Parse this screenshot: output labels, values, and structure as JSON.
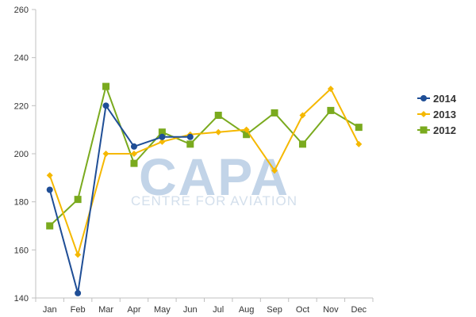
{
  "watermark": {
    "logo_text": "CAPA",
    "tagline": "CENTRE FOR AVIATION"
  },
  "chart_data": {
    "type": "line",
    "categories": [
      "Jan",
      "Feb",
      "Mar",
      "Apr",
      "May",
      "Jun",
      "Jul",
      "Aug",
      "Sep",
      "Oct",
      "Nov",
      "Dec"
    ],
    "ylim": [
      140,
      260
    ],
    "yticks": [
      140,
      160,
      180,
      200,
      220,
      240,
      260
    ],
    "grid": false,
    "legend_position": "right",
    "title": "",
    "xlabel": "",
    "ylabel": "",
    "series": [
      {
        "name": "2014",
        "color": "#1f4e96",
        "marker": "circle",
        "values": [
          185,
          142,
          220,
          203,
          207,
          207,
          null,
          null,
          null,
          null,
          null,
          null
        ]
      },
      {
        "name": "2013",
        "color": "#f5b800",
        "marker": "diamond",
        "values": [
          191,
          158,
          200,
          200,
          205,
          208,
          209,
          210,
          193,
          216,
          227,
          204
        ]
      },
      {
        "name": "2012",
        "color": "#7aaa1e",
        "marker": "square",
        "values": [
          170,
          181,
          228,
          196,
          209,
          204,
          216,
          208,
          217,
          204,
          218,
          211
        ]
      }
    ]
  }
}
